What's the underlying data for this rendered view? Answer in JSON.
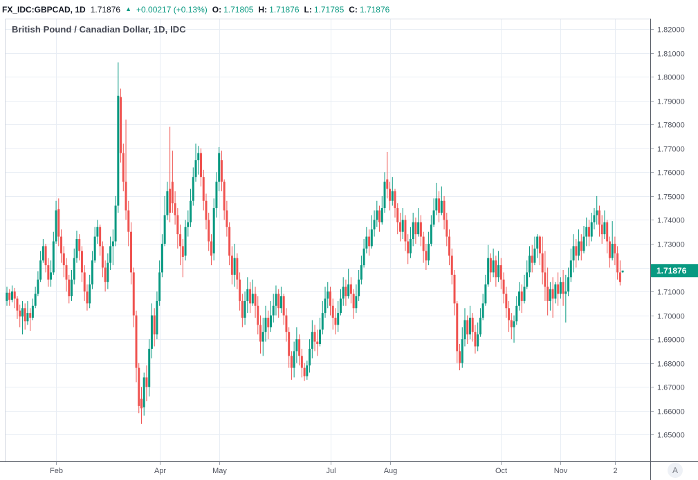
{
  "header": {
    "symbol": "FX_IDC:GBPCAD, 1D",
    "price": "1.71876",
    "direction_icon": "▲",
    "change": "+0.00217 (+0.13%)",
    "o_label": "O:",
    "o": "1.71805",
    "h_label": "H:",
    "h": "1.71876",
    "l_label": "L:",
    "l": "1.71785",
    "c_label": "C:",
    "c": "1.71876"
  },
  "chart": {
    "title": "British Pound / Canadian Dollar, 1D, IDC",
    "price_tag": "1.71876",
    "auto_scale_button": "A"
  },
  "colors": {
    "up": "#089981",
    "down": "#ef5350",
    "grid": "#e8edf4",
    "pane_border": "#d1d6e0",
    "axis_line": "#555a64",
    "axis_text": "#50535e",
    "tick_mark": "#9aa0aa",
    "legend_text": "#131722",
    "tag_text": "#ffffff",
    "background": "#ffffff"
  },
  "chart_data": {
    "type": "candlestick",
    "title": "British Pound / Canadian Dollar, 1D, IDC",
    "symbol": "FX_IDC:GBPCAD",
    "timeframe": "1D",
    "data_source": "IDC",
    "last_price": 1.71876,
    "ylim": [
      1.639,
      1.824
    ],
    "grid": true,
    "y_tick_decimals": 5,
    "y_ticks": [
      1.82,
      1.81,
      1.8,
      1.79,
      1.78,
      1.77,
      1.76,
      1.75,
      1.74,
      1.73,
      1.72,
      1.71,
      1.7,
      1.69,
      1.68,
      1.67,
      1.66,
      1.65
    ],
    "x_ticks": [
      {
        "label": "Feb",
        "bar": 19
      },
      {
        "label": "Apr",
        "bar": 59
      },
      {
        "label": "May",
        "bar": 82
      },
      {
        "label": "Jul",
        "bar": 125
      },
      {
        "label": "Aug",
        "bar": 148
      },
      {
        "label": "Oct",
        "bar": 191
      },
      {
        "label": "Nov",
        "bar": 214
      },
      {
        "label": "2",
        "bar": 235
      }
    ],
    "candles": [
      [
        1.706,
        1.712,
        1.704,
        1.7095
      ],
      [
        1.7095,
        1.711,
        1.704,
        1.7065
      ],
      [
        1.7065,
        1.7125,
        1.7055,
        1.71
      ],
      [
        1.71,
        1.7115,
        1.703,
        1.707
      ],
      [
        1.707,
        1.708,
        1.6985,
        1.702
      ],
      [
        1.702,
        1.7045,
        1.695,
        1.6995
      ],
      [
        1.6995,
        1.706,
        1.692,
        1.703
      ],
      [
        1.703,
        1.705,
        1.694,
        1.6975
      ],
      [
        1.6975,
        1.706,
        1.696,
        1.701
      ],
      [
        1.701,
        1.703,
        1.6935,
        1.699
      ],
      [
        1.699,
        1.707,
        1.698,
        1.704
      ],
      [
        1.704,
        1.712,
        1.703,
        1.709
      ],
      [
        1.709,
        1.7185,
        1.708,
        1.715
      ],
      [
        1.715,
        1.727,
        1.714,
        1.723
      ],
      [
        1.723,
        1.732,
        1.722,
        1.729
      ],
      [
        1.729,
        1.73,
        1.718,
        1.721
      ],
      [
        1.721,
        1.724,
        1.712,
        1.715
      ],
      [
        1.715,
        1.723,
        1.712,
        1.718
      ],
      [
        1.718,
        1.735,
        1.717,
        1.731
      ],
      [
        1.731,
        1.748,
        1.73,
        1.744
      ],
      [
        1.7445,
        1.749,
        1.729,
        1.733
      ],
      [
        1.733,
        1.736,
        1.722,
        1.726
      ],
      [
        1.726,
        1.729,
        1.716,
        1.721
      ],
      [
        1.721,
        1.724,
        1.71,
        1.715
      ],
      [
        1.715,
        1.717,
        1.705,
        1.708
      ],
      [
        1.708,
        1.719,
        1.706,
        1.715
      ],
      [
        1.715,
        1.728,
        1.713,
        1.724
      ],
      [
        1.724,
        1.7355,
        1.722,
        1.732
      ],
      [
        1.732,
        1.734,
        1.723,
        1.727
      ],
      [
        1.727,
        1.729,
        1.714,
        1.718
      ],
      [
        1.718,
        1.721,
        1.706,
        1.71
      ],
      [
        1.71,
        1.713,
        1.702,
        1.705
      ],
      [
        1.705,
        1.717,
        1.703,
        1.713
      ],
      [
        1.713,
        1.727,
        1.711,
        1.723
      ],
      [
        1.723,
        1.737,
        1.722,
        1.733
      ],
      [
        1.733,
        1.74,
        1.73,
        1.737
      ],
      [
        1.737,
        1.738,
        1.725,
        1.729
      ],
      [
        1.729,
        1.731,
        1.716,
        1.72
      ],
      [
        1.72,
        1.723,
        1.71,
        1.714
      ],
      [
        1.714,
        1.726,
        1.711,
        1.722
      ],
      [
        1.722,
        1.733,
        1.719,
        1.729
      ],
      [
        1.729,
        1.736,
        1.721,
        1.731
      ],
      [
        1.731,
        1.75,
        1.729,
        1.746
      ],
      [
        1.746,
        1.806,
        1.743,
        1.792
      ],
      [
        1.7915,
        1.795,
        1.764,
        1.768
      ],
      [
        1.768,
        1.772,
        1.752,
        1.756
      ],
      [
        1.756,
        1.782,
        1.74,
        1.744
      ],
      [
        1.744,
        1.748,
        1.729,
        1.735
      ],
      [
        1.735,
        1.739,
        1.713,
        1.718
      ],
      [
        1.718,
        1.72,
        1.695,
        1.7
      ],
      [
        1.7,
        1.702,
        1.672,
        1.678
      ],
      [
        1.678,
        1.68,
        1.659,
        1.662
      ],
      [
        1.665,
        1.67,
        1.6545,
        1.661
      ],
      [
        1.6615,
        1.676,
        1.658,
        1.674
      ],
      [
        1.674,
        1.679,
        1.664,
        1.67
      ],
      [
        1.67,
        1.69,
        1.666,
        1.686
      ],
      [
        1.686,
        1.705,
        1.682,
        1.7
      ],
      [
        1.7,
        1.703,
        1.687,
        1.692
      ],
      [
        1.692,
        1.71,
        1.69,
        1.706
      ],
      [
        1.706,
        1.723,
        1.704,
        1.718
      ],
      [
        1.718,
        1.734,
        1.716,
        1.73
      ],
      [
        1.73,
        1.75,
        1.729,
        1.742
      ],
      [
        1.742,
        1.756,
        1.74,
        1.752
      ],
      [
        1.753,
        1.779,
        1.739,
        1.743
      ],
      [
        1.756,
        1.769,
        1.743,
        1.747
      ],
      [
        1.747,
        1.752,
        1.738,
        1.742
      ],
      [
        1.742,
        1.745,
        1.728,
        1.734
      ],
      [
        1.734,
        1.738,
        1.721,
        1.729
      ],
      [
        1.729,
        1.732,
        1.716,
        1.7245
      ],
      [
        1.725,
        1.74,
        1.723,
        1.737
      ],
      [
        1.737,
        1.744,
        1.733,
        1.739
      ],
      [
        1.739,
        1.753,
        1.737,
        1.748
      ],
      [
        1.748,
        1.762,
        1.746,
        1.758
      ],
      [
        1.758,
        1.772,
        1.756,
        1.765
      ],
      [
        1.765,
        1.771,
        1.759,
        1.768
      ],
      [
        1.768,
        1.77,
        1.754,
        1.758
      ],
      [
        1.758,
        1.761,
        1.744,
        1.748
      ],
      [
        1.748,
        1.751,
        1.736,
        1.74
      ],
      [
        1.74,
        1.743,
        1.727,
        1.731
      ],
      [
        1.731,
        1.734,
        1.721,
        1.725
      ],
      [
        1.726,
        1.749,
        1.723,
        1.745
      ],
      [
        1.745,
        1.76,
        1.741,
        1.756
      ],
      [
        1.756,
        1.7705,
        1.752,
        1.768
      ],
      [
        1.765,
        1.769,
        1.752,
        1.756
      ],
      [
        1.756,
        1.757,
        1.74,
        1.744
      ],
      [
        1.744,
        1.748,
        1.733,
        1.737
      ],
      [
        1.737,
        1.739,
        1.721,
        1.725
      ],
      [
        1.725,
        1.729,
        1.713,
        1.717
      ],
      [
        1.717,
        1.73,
        1.712,
        1.724
      ],
      [
        1.724,
        1.726,
        1.711,
        1.715
      ],
      [
        1.715,
        1.718,
        1.702,
        1.706
      ],
      [
        1.706,
        1.709,
        1.695,
        1.699
      ],
      [
        1.699,
        1.71,
        1.696,
        1.706
      ],
      [
        1.706,
        1.716,
        1.701,
        1.711
      ],
      [
        1.711,
        1.714,
        1.701,
        1.705
      ],
      [
        1.705,
        1.715,
        1.704,
        1.709
      ],
      [
        1.709,
        1.712,
        1.699,
        1.704
      ],
      [
        1.704,
        1.708,
        1.692,
        1.696
      ],
      [
        1.696,
        1.7,
        1.684,
        1.689
      ],
      [
        1.689,
        1.699,
        1.683,
        1.693
      ],
      [
        1.693,
        1.704,
        1.689,
        1.699
      ],
      [
        1.699,
        1.702,
        1.69,
        1.695
      ],
      [
        1.695,
        1.706,
        1.693,
        1.7
      ],
      [
        1.7,
        1.709,
        1.697,
        1.704
      ],
      [
        1.704,
        1.7125,
        1.7,
        1.709
      ],
      [
        1.709,
        1.711,
        1.699,
        1.703
      ],
      [
        1.703,
        1.712,
        1.701,
        1.708
      ],
      [
        1.708,
        1.709,
        1.696,
        1.7
      ],
      [
        1.7,
        1.703,
        1.689,
        1.693
      ],
      [
        1.693,
        1.695,
        1.678,
        1.683
      ],
      [
        1.683,
        1.685,
        1.673,
        1.678
      ],
      [
        1.678,
        1.689,
        1.674,
        1.685
      ],
      [
        1.685,
        1.695,
        1.68,
        1.69
      ],
      [
        1.69,
        1.692,
        1.679,
        1.683
      ],
      [
        1.683,
        1.686,
        1.674,
        1.678
      ],
      [
        1.678,
        1.68,
        1.6725,
        1.6745
      ],
      [
        1.6745,
        1.681,
        1.673,
        1.679
      ],
      [
        1.679,
        1.69,
        1.676,
        1.686
      ],
      [
        1.686,
        1.698,
        1.682,
        1.693
      ],
      [
        1.693,
        1.696,
        1.685,
        1.689
      ],
      [
        1.689,
        1.694,
        1.683,
        1.688
      ],
      [
        1.688,
        1.699,
        1.687,
        1.694
      ],
      [
        1.694,
        1.706,
        1.692,
        1.701
      ],
      [
        1.701,
        1.712,
        1.699,
        1.707
      ],
      [
        1.707,
        1.714,
        1.703,
        1.71
      ],
      [
        1.71,
        1.712,
        1.7,
        1.704
      ],
      [
        1.704,
        1.707,
        1.694,
        1.699
      ],
      [
        1.699,
        1.703,
        1.692,
        1.696
      ],
      [
        1.696,
        1.706,
        1.693,
        1.701
      ],
      [
        1.701,
        1.711,
        1.7,
        1.707
      ],
      [
        1.707,
        1.716,
        1.704,
        1.712
      ],
      [
        1.712,
        1.715,
        1.704,
        1.708
      ],
      [
        1.708,
        1.7195,
        1.707,
        1.713
      ],
      [
        1.713,
        1.716,
        1.705,
        1.709
      ],
      [
        1.709,
        1.711,
        1.6985,
        1.703
      ],
      [
        1.703,
        1.713,
        1.701,
        1.708
      ],
      [
        1.708,
        1.719,
        1.706,
        1.715
      ],
      [
        1.715,
        1.725,
        1.713,
        1.721
      ],
      [
        1.721,
        1.732,
        1.72,
        1.728
      ],
      [
        1.728,
        1.737,
        1.726,
        1.733
      ],
      [
        1.733,
        1.736,
        1.725,
        1.729
      ],
      [
        1.729,
        1.742,
        1.728,
        1.736
      ],
      [
        1.736,
        1.744,
        1.733,
        1.74
      ],
      [
        1.74,
        1.748,
        1.737,
        1.744
      ],
      [
        1.744,
        1.746,
        1.735,
        1.739
      ],
      [
        1.739,
        1.75,
        1.738,
        1.745
      ],
      [
        1.745,
        1.76,
        1.743,
        1.756
      ],
      [
        1.757,
        1.7685,
        1.749,
        1.753
      ],
      [
        1.753,
        1.756,
        1.744,
        1.748
      ],
      [
        1.748,
        1.758,
        1.746,
        1.752
      ],
      [
        1.752,
        1.753,
        1.741,
        1.745
      ],
      [
        1.745,
        1.747,
        1.734,
        1.739
      ],
      [
        1.739,
        1.743,
        1.731,
        1.735
      ],
      [
        1.735,
        1.745,
        1.732,
        1.74
      ],
      [
        1.74,
        1.742,
        1.727,
        1.731
      ],
      [
        1.731,
        1.734,
        1.7215,
        1.726
      ],
      [
        1.726,
        1.737,
        1.724,
        1.732
      ],
      [
        1.732,
        1.743,
        1.729,
        1.739
      ],
      [
        1.739,
        1.741,
        1.73,
        1.734
      ],
      [
        1.734,
        1.745,
        1.733,
        1.739
      ],
      [
        1.739,
        1.742,
        1.729,
        1.733
      ],
      [
        1.733,
        1.735,
        1.722,
        1.727
      ],
      [
        1.727,
        1.73,
        1.719,
        1.723
      ],
      [
        1.723,
        1.735,
        1.721,
        1.73
      ],
      [
        1.73,
        1.742,
        1.729,
        1.738
      ],
      [
        1.738,
        1.749,
        1.737,
        1.744
      ],
      [
        1.744,
        1.7555,
        1.742,
        1.749
      ],
      [
        1.749,
        1.752,
        1.739,
        1.743
      ],
      [
        1.743,
        1.754,
        1.742,
        1.748
      ],
      [
        1.748,
        1.75,
        1.736,
        1.74
      ],
      [
        1.74,
        1.743,
        1.729,
        1.733
      ],
      [
        1.733,
        1.736,
        1.721,
        1.725
      ],
      [
        1.725,
        1.728,
        1.713,
        1.717
      ],
      [
        1.717,
        1.719,
        1.7,
        1.705
      ],
      [
        1.705,
        1.706,
        1.68,
        1.685
      ],
      [
        1.685,
        1.688,
        1.677,
        1.68
      ],
      [
        1.68,
        1.695,
        1.678,
        1.69
      ],
      [
        1.69,
        1.703,
        1.687,
        1.698
      ],
      [
        1.698,
        1.7,
        1.688,
        1.692
      ],
      [
        1.692,
        1.704,
        1.69,
        1.699
      ],
      [
        1.699,
        1.701,
        1.689,
        1.693
      ],
      [
        1.693,
        1.696,
        1.684,
        1.687
      ],
      [
        1.687,
        1.697,
        1.685,
        1.692
      ],
      [
        1.692,
        1.703,
        1.691,
        1.699
      ],
      [
        1.699,
        1.709,
        1.698,
        1.705
      ],
      [
        1.705,
        1.717,
        1.704,
        1.713
      ],
      [
        1.713,
        1.7295,
        1.712,
        1.724
      ],
      [
        1.724,
        1.726,
        1.714,
        1.718
      ],
      [
        1.718,
        1.728,
        1.716,
        1.723
      ],
      [
        1.723,
        1.725,
        1.712,
        1.716
      ],
      [
        1.716,
        1.727,
        1.714,
        1.721
      ],
      [
        1.721,
        1.724,
        1.711,
        1.715
      ],
      [
        1.715,
        1.718,
        1.705,
        1.709
      ],
      [
        1.709,
        1.712,
        1.699,
        1.703
      ],
      [
        1.703,
        1.706,
        1.693,
        1.698
      ],
      [
        1.698,
        1.701,
        1.69,
        1.695
      ],
      [
        1.695,
        1.7,
        1.6885,
        1.6975
      ],
      [
        1.6975,
        1.708,
        1.696,
        1.704
      ],
      [
        1.704,
        1.714,
        1.702,
        1.71
      ],
      [
        1.71,
        1.713,
        1.701,
        1.706
      ],
      [
        1.706,
        1.717,
        1.705,
        1.712
      ],
      [
        1.712,
        1.723,
        1.711,
        1.718
      ],
      [
        1.718,
        1.729,
        1.716,
        1.725
      ],
      [
        1.725,
        1.7295,
        1.718,
        1.722
      ],
      [
        1.722,
        1.733,
        1.721,
        1.728
      ],
      [
        1.728,
        1.734,
        1.724,
        1.733
      ],
      [
        1.733,
        1.7335,
        1.721,
        1.726
      ],
      [
        1.726,
        1.733,
        1.713,
        1.718
      ],
      [
        1.718,
        1.727,
        1.706,
        1.712
      ],
      [
        1.712,
        1.72,
        1.7,
        1.706
      ],
      [
        1.706,
        1.714,
        1.702,
        1.711
      ],
      [
        1.711,
        1.716,
        1.699,
        1.707
      ],
      [
        1.707,
        1.714,
        1.705,
        1.713
      ],
      [
        1.713,
        1.718,
        1.704,
        1.709
      ],
      [
        1.709,
        1.716,
        1.707,
        1.714
      ],
      [
        1.714,
        1.719,
        1.704,
        1.709
      ],
      [
        1.709,
        1.717,
        1.697,
        1.71
      ],
      [
        1.71,
        1.72,
        1.708,
        1.716
      ],
      [
        1.716,
        1.728,
        1.714,
        1.723
      ],
      [
        1.723,
        1.734,
        1.718,
        1.729
      ],
      [
        1.729,
        1.732,
        1.72,
        1.725
      ],
      [
        1.725,
        1.736,
        1.723,
        1.731
      ],
      [
        1.731,
        1.734,
        1.723,
        1.727
      ],
      [
        1.727,
        1.7375,
        1.726,
        1.733
      ],
      [
        1.733,
        1.741,
        1.729,
        1.737
      ],
      [
        1.737,
        1.74,
        1.729,
        1.733
      ],
      [
        1.733,
        1.743,
        1.731,
        1.739
      ],
      [
        1.739,
        1.745,
        1.736,
        1.742
      ],
      [
        1.742,
        1.75,
        1.738,
        1.744
      ],
      [
        1.744,
        1.746,
        1.733,
        1.738
      ],
      [
        1.738,
        1.742,
        1.73,
        1.734
      ],
      [
        1.734,
        1.744,
        1.732,
        1.739
      ],
      [
        1.739,
        1.74,
        1.726,
        1.731
      ],
      [
        1.731,
        1.733,
        1.72,
        1.724
      ],
      [
        1.724,
        1.7395,
        1.723,
        1.73
      ],
      [
        1.73,
        1.733,
        1.721,
        1.726
      ],
      [
        1.726,
        1.729,
        1.715,
        1.718
      ],
      [
        1.718,
        1.723,
        1.7125,
        1.714
      ],
      [
        1.71805,
        1.71876,
        1.71785,
        1.71876
      ]
    ]
  }
}
